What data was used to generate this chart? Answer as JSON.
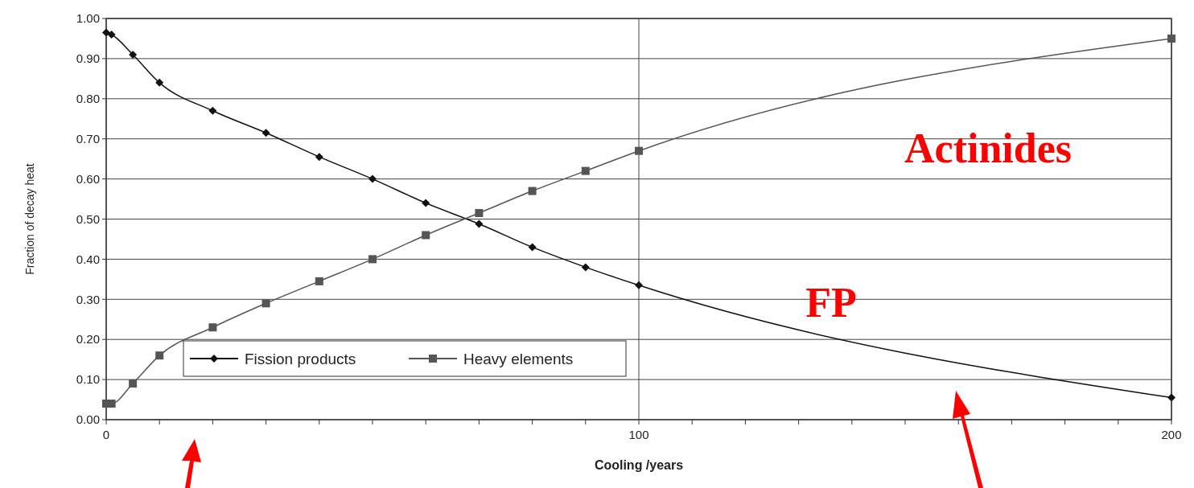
{
  "chart_data": {
    "type": "line",
    "xlabel": "Cooling /years",
    "ylabel": "Fraction of decay heat",
    "xlim": [
      0,
      200
    ],
    "ylim": [
      0,
      1
    ],
    "xticks": [
      0,
      {
        "value": 10,
        "label": null
      },
      {
        "value": 20,
        "label": null
      },
      {
        "value": 30,
        "label": null
      },
      {
        "value": 40,
        "label": null
      },
      {
        "value": 50,
        "label": null
      },
      {
        "value": 60,
        "label": null
      },
      {
        "value": 70,
        "label": null
      },
      {
        "value": 80,
        "label": null
      },
      {
        "value": 90,
        "label": null
      },
      100,
      {
        "value": 110,
        "label": null
      },
      {
        "value": 120,
        "label": null
      },
      {
        "value": 130,
        "label": null
      },
      {
        "value": 140,
        "label": null
      },
      {
        "value": 150,
        "label": null
      },
      {
        "value": 160,
        "label": null
      },
      {
        "value": 170,
        "label": null
      },
      {
        "value": 180,
        "label": null
      },
      {
        "value": 190,
        "label": null
      },
      200
    ],
    "yticks": [
      {
        "value": 0,
        "label": "0.00"
      },
      {
        "value": 0.1,
        "label": "0.10"
      },
      {
        "value": 0.2,
        "label": "0.20"
      },
      {
        "value": 0.3,
        "label": "0.30"
      },
      {
        "value": 0.4,
        "label": "0.40"
      },
      {
        "value": 0.5,
        "label": "0.50"
      },
      {
        "value": 0.6,
        "label": "0.60"
      },
      {
        "value": 0.7,
        "label": "0.70"
      },
      {
        "value": 0.8,
        "label": "0.80"
      },
      {
        "value": 0.9,
        "label": "0.90"
      },
      {
        "value": 1,
        "label": "1.00"
      }
    ],
    "grid": true,
    "legend": "bottom left",
    "x": [
      0,
      1,
      5,
      10,
      20,
      30,
      40,
      50,
      60,
      70,
      80,
      90,
      100,
      200
    ],
    "series": [
      {
        "name": "Fission products",
        "color": "#111111",
        "marker": "diamond",
        "values": [
          0.965,
          0.96,
          0.91,
          0.84,
          0.77,
          0.715,
          0.655,
          0.6,
          0.54,
          0.488,
          0.43,
          0.38,
          0.335,
          0.055
        ]
      },
      {
        "name": "Heavy elements",
        "color": "#555555",
        "marker": "square",
        "values": [
          0.04,
          0.04,
          0.09,
          0.16,
          0.23,
          0.29,
          0.345,
          0.4,
          0.46,
          0.515,
          0.57,
          0.62,
          0.67,
          0.95
        ]
      }
    ],
    "annotations": [
      "Actinides",
      "FP"
    ]
  }
}
